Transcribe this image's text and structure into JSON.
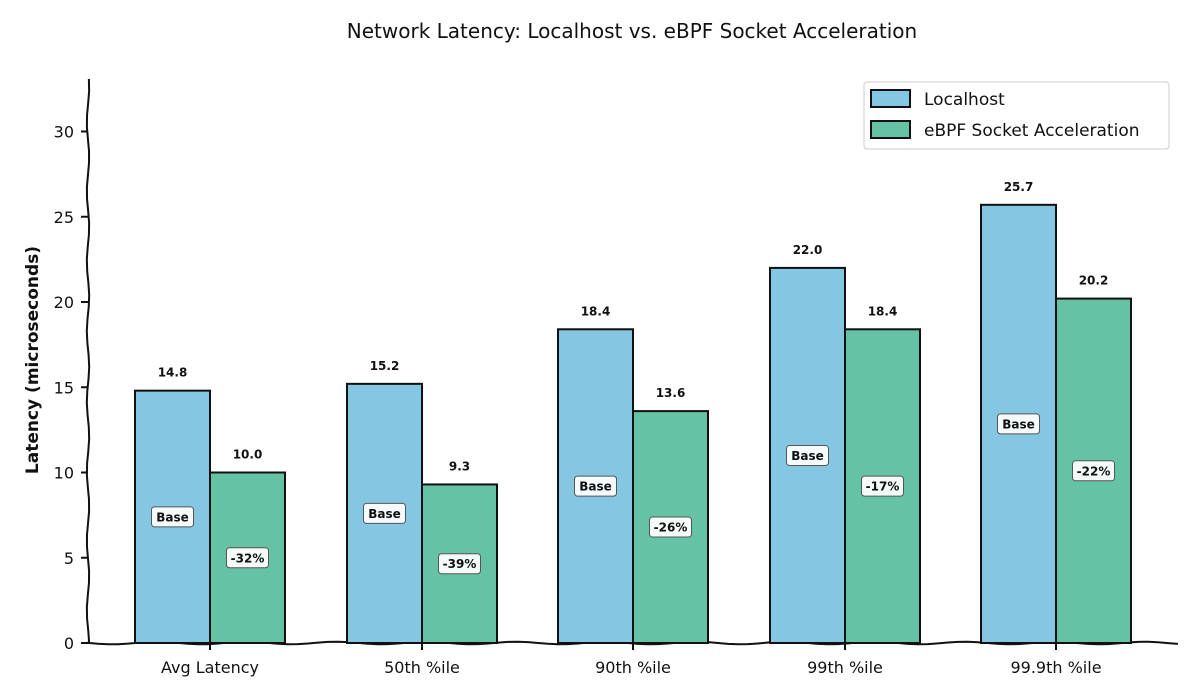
{
  "chart_data": {
    "type": "bar",
    "title": "Network Latency: Localhost vs. eBPF Socket Acceleration",
    "xlabel": "",
    "ylabel": "Latency (microseconds)",
    "ylim": [
      0,
      33
    ],
    "yticks": [
      0,
      5,
      10,
      15,
      20,
      25,
      30
    ],
    "categories": [
      "Avg Latency",
      "50th %ile",
      "90th %ile",
      "99th %ile",
      "99.9th %ile"
    ],
    "series": [
      {
        "name": "Localhost",
        "color": "#85C6E3",
        "values": [
          14.8,
          15.2,
          18.4,
          22.0,
          25.7
        ],
        "value_labels": [
          "14.8",
          "15.2",
          "18.4",
          "22.0",
          "25.7"
        ],
        "inbar_labels": [
          "Base",
          "Base",
          "Base",
          "Base",
          "Base"
        ]
      },
      {
        "name": "eBPF Socket Acceleration",
        "color": "#66C2A5",
        "values": [
          10.0,
          9.3,
          13.6,
          18.4,
          20.2
        ],
        "value_labels": [
          "10.0",
          "9.3",
          "13.6",
          "18.4",
          "20.2"
        ],
        "inbar_labels": [
          "-32%",
          "-39%",
          "-26%",
          "-17%",
          "-22%"
        ]
      }
    ],
    "legend_position": "top-right",
    "grid": false
  }
}
